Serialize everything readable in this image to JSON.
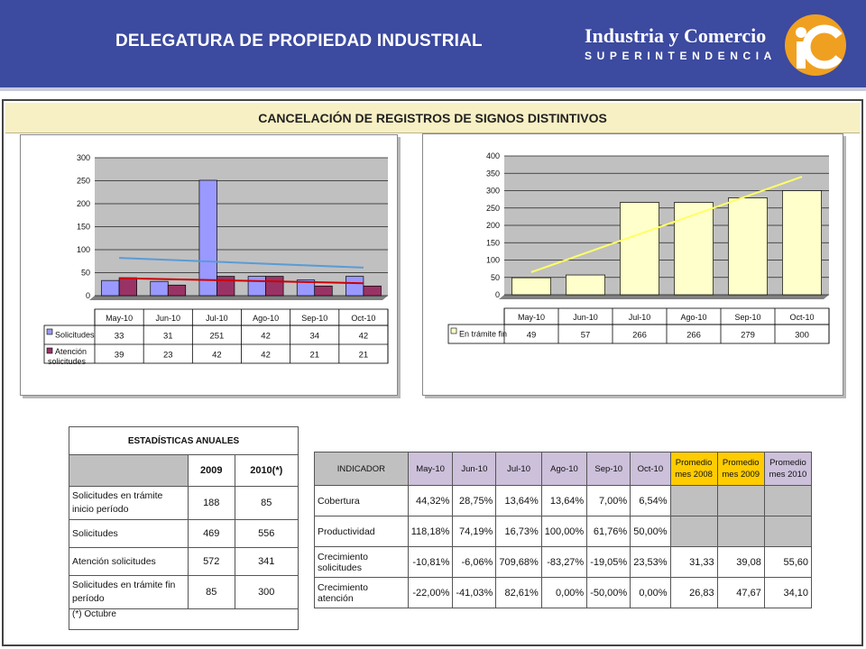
{
  "header": {
    "title": "DELEGATURA DE PROPIEDAD INDUSTRIAL",
    "brand_name": "Industria y Comercio",
    "brand_sub": "SUPERINTENDENCIA"
  },
  "banner_title": "CANCELACIÓN DE REGISTROS DE SIGNOS DISTINTIVOS",
  "colors": {
    "header_bg": "#3c4a9f",
    "solicitudes": "#9999ff",
    "atencion": "#993366",
    "en_tramite": "#ffffcc",
    "trend_blue": "#5b9bd5",
    "trend_red": "#cc0000",
    "trend_yellow": "#ffff66",
    "plot_bg": "#c0c0c0",
    "promedio_gold": "#ffcc00",
    "header_lilac": "#ccc0da"
  },
  "chart_data": [
    {
      "type": "bar",
      "categories": [
        "May-10",
        "Jun-10",
        "Jul-10",
        "Ago-10",
        "Sep-10",
        "Oct-10"
      ],
      "series": [
        {
          "name": "Solicitudes",
          "values": [
            33,
            31,
            251,
            42,
            34,
            42
          ]
        },
        {
          "name": "Atención solicitudes",
          "values": [
            39,
            23,
            42,
            42,
            21,
            21
          ]
        }
      ],
      "trendlines": [
        {
          "series": "Solicitudes",
          "start": 82,
          "end": 61
        },
        {
          "series": "Atención solicitudes",
          "start": 38,
          "end": 27
        }
      ],
      "ylim": [
        0,
        300
      ],
      "yticks": [
        0,
        50,
        100,
        150,
        200,
        250,
        300
      ],
      "grid": true,
      "legend": "data-table"
    },
    {
      "type": "bar",
      "categories": [
        "May-10",
        "Jun-10",
        "Jul-10",
        "Ago-10",
        "Sep-10",
        "Oct-10"
      ],
      "series": [
        {
          "name": "En trámite fin",
          "values": [
            49,
            57,
            266,
            266,
            279,
            300
          ]
        }
      ],
      "trendlines": [
        {
          "series": "En trámite fin",
          "start": 65,
          "end": 340
        }
      ],
      "ylim": [
        0,
        400
      ],
      "yticks": [
        0,
        50,
        100,
        150,
        200,
        250,
        300,
        350,
        400
      ],
      "grid": true,
      "legend": "data-table"
    }
  ],
  "annual": {
    "title": "ESTADÍSTICAS ANUALES",
    "col_2009": "2009",
    "col_2010": "2010(*)",
    "rows": [
      {
        "label": "Solicitudes en trámite inicio período",
        "v2009": "188",
        "v2010": "85"
      },
      {
        "label": "Solicitudes",
        "v2009": "469",
        "v2010": "556"
      },
      {
        "label": "Atención solicitudes",
        "v2009": "572",
        "v2010": "341"
      },
      {
        "label": "Solicitudes en trámite fin período",
        "v2009": "85",
        "v2010": "300"
      }
    ],
    "note": "(*) Octubre"
  },
  "indicators": {
    "headers": [
      "INDICADOR",
      "May-10",
      "Jun-10",
      "Jul-10",
      "Ago-10",
      "Sep-10",
      "Oct-10",
      "Promedio mes 2008",
      "Promedio mes 2009",
      "Promedio mes 2010"
    ],
    "rows": [
      {
        "name": "Cobertura",
        "values": [
          "44,32%",
          "28,75%",
          "13,64%",
          "13,64%",
          "7,00%",
          "6,54%"
        ],
        "avgs": [
          "",
          "",
          ""
        ]
      },
      {
        "name": "Productividad",
        "values": [
          "118,18%",
          "74,19%",
          "16,73%",
          "100,00%",
          "61,76%",
          "50,00%"
        ],
        "avgs": [
          "",
          "",
          ""
        ]
      },
      {
        "name": "Crecimiento solicitudes",
        "values": [
          "-10,81%",
          "-6,06%",
          "709,68%",
          "-83,27%",
          "-19,05%",
          "23,53%"
        ],
        "avgs": [
          "31,33",
          "39,08",
          "55,60"
        ]
      },
      {
        "name": "Crecimiento atención",
        "values": [
          "-22,00%",
          "-41,03%",
          "82,61%",
          "0,00%",
          "-50,00%",
          "0,00%"
        ],
        "avgs": [
          "26,83",
          "47,67",
          "34,10"
        ]
      }
    ]
  }
}
